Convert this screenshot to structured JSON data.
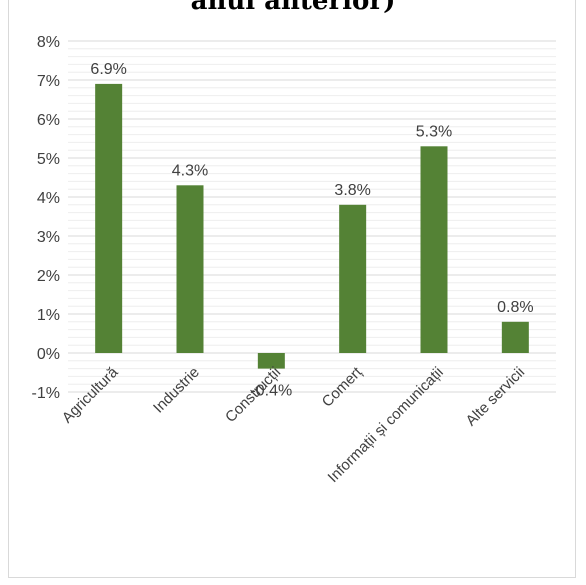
{
  "chart_title": "anul anterior)",
  "chart_data": {
    "type": "bar",
    "title": "anul anterior)",
    "categories": [
      "Agricultură",
      "Industrie",
      "Construcții",
      "Comerț",
      "Informații și comunicații",
      "Alte servicii"
    ],
    "values": [
      6.9,
      4.3,
      -0.4,
      3.8,
      5.3,
      0.8
    ],
    "data_labels": [
      "6.9%",
      "4.3%",
      "-0.4%",
      "3.8%",
      "5.3%",
      "0.8%"
    ],
    "y_ticks": [
      "-1%",
      "0%",
      "1%",
      "2%",
      "3%",
      "4%",
      "5%",
      "6%",
      "7%",
      "8%"
    ],
    "ylim": [
      -1,
      8
    ],
    "bar_color": "#548235",
    "grid": true,
    "legend": "none"
  }
}
